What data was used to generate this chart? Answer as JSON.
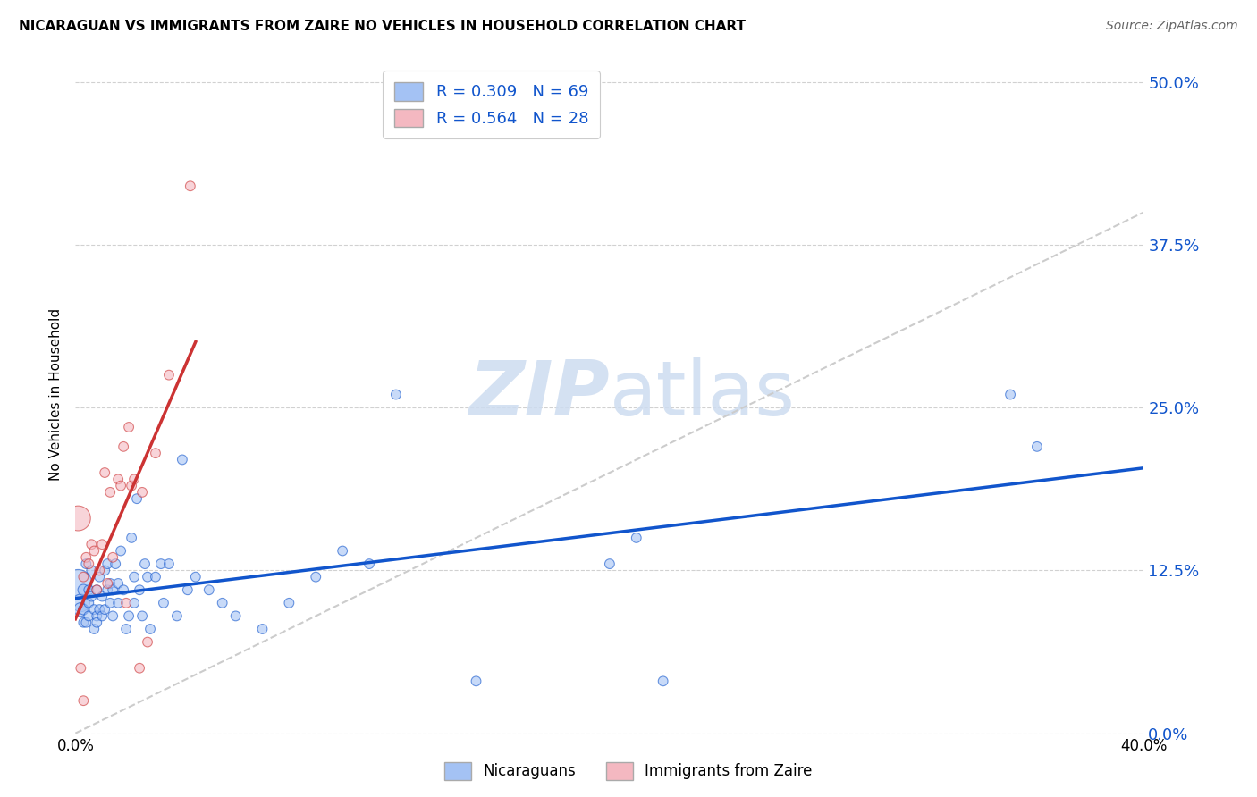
{
  "title": "NICARAGUAN VS IMMIGRANTS FROM ZAIRE NO VEHICLES IN HOUSEHOLD CORRELATION CHART",
  "source": "Source: ZipAtlas.com",
  "ylabel": "No Vehicles in Household",
  "xlim": [
    0.0,
    0.4
  ],
  "ylim": [
    0.0,
    0.52
  ],
  "yticks": [
    0.0,
    0.125,
    0.25,
    0.375,
    0.5
  ],
  "ytick_labels": [
    "0.0%",
    "12.5%",
    "25.0%",
    "37.5%",
    "50.0%"
  ],
  "xticks": [
    0.0,
    0.1,
    0.2,
    0.3,
    0.4
  ],
  "xtick_labels": [
    "0.0%",
    "",
    "",
    "",
    "40.0%"
  ],
  "color_blue": "#a4c2f4",
  "color_pink": "#f4b8c1",
  "line_blue": "#1155cc",
  "line_pink": "#cc3333",
  "line_diagonal": "#cccccc",
  "watermark_zip": "ZIP",
  "watermark_atlas": "atlas",
  "watermark_color": "#cddcf0",
  "nicaraguan_x": [
    0.001,
    0.002,
    0.002,
    0.003,
    0.003,
    0.003,
    0.004,
    0.004,
    0.005,
    0.005,
    0.005,
    0.006,
    0.006,
    0.007,
    0.007,
    0.008,
    0.008,
    0.008,
    0.009,
    0.009,
    0.01,
    0.01,
    0.011,
    0.011,
    0.012,
    0.012,
    0.013,
    0.013,
    0.014,
    0.014,
    0.015,
    0.016,
    0.016,
    0.017,
    0.018,
    0.019,
    0.02,
    0.021,
    0.022,
    0.022,
    0.023,
    0.024,
    0.025,
    0.026,
    0.027,
    0.028,
    0.03,
    0.032,
    0.033,
    0.035,
    0.038,
    0.04,
    0.042,
    0.045,
    0.05,
    0.055,
    0.06,
    0.07,
    0.08,
    0.09,
    0.1,
    0.11,
    0.12,
    0.15,
    0.2,
    0.21,
    0.22,
    0.35,
    0.36
  ],
  "nicaraguan_y": [
    0.115,
    0.1,
    0.095,
    0.11,
    0.095,
    0.085,
    0.13,
    0.085,
    0.1,
    0.09,
    0.11,
    0.125,
    0.105,
    0.08,
    0.095,
    0.11,
    0.09,
    0.085,
    0.12,
    0.095,
    0.105,
    0.09,
    0.125,
    0.095,
    0.13,
    0.11,
    0.1,
    0.115,
    0.11,
    0.09,
    0.13,
    0.1,
    0.115,
    0.14,
    0.11,
    0.08,
    0.09,
    0.15,
    0.12,
    0.1,
    0.18,
    0.11,
    0.09,
    0.13,
    0.12,
    0.08,
    0.12,
    0.13,
    0.1,
    0.13,
    0.09,
    0.21,
    0.11,
    0.12,
    0.11,
    0.1,
    0.09,
    0.08,
    0.1,
    0.12,
    0.14,
    0.13,
    0.26,
    0.04,
    0.13,
    0.15,
    0.04,
    0.26,
    0.22
  ],
  "nicaraguan_size": [
    500,
    200,
    120,
    80,
    70,
    60,
    60,
    60,
    60,
    60,
    60,
    60,
    60,
    60,
    60,
    60,
    60,
    60,
    60,
    60,
    60,
    60,
    60,
    60,
    60,
    60,
    60,
    60,
    60,
    60,
    60,
    60,
    60,
    60,
    60,
    60,
    60,
    60,
    60,
    60,
    60,
    60,
    60,
    60,
    60,
    60,
    60,
    60,
    60,
    60,
    60,
    60,
    60,
    60,
    60,
    60,
    60,
    60,
    60,
    60,
    60,
    60,
    60,
    60,
    60,
    60,
    60,
    60,
    60
  ],
  "zaire_x": [
    0.001,
    0.002,
    0.003,
    0.003,
    0.004,
    0.005,
    0.006,
    0.007,
    0.008,
    0.009,
    0.01,
    0.011,
    0.012,
    0.013,
    0.014,
    0.016,
    0.017,
    0.018,
    0.019,
    0.02,
    0.021,
    0.022,
    0.024,
    0.025,
    0.027,
    0.03,
    0.035,
    0.043
  ],
  "zaire_y": [
    0.165,
    0.05,
    0.025,
    0.12,
    0.135,
    0.13,
    0.145,
    0.14,
    0.11,
    0.125,
    0.145,
    0.2,
    0.115,
    0.185,
    0.135,
    0.195,
    0.19,
    0.22,
    0.1,
    0.235,
    0.19,
    0.195,
    0.05,
    0.185,
    0.07,
    0.215,
    0.275,
    0.42
  ],
  "zaire_size": [
    400,
    60,
    60,
    60,
    60,
    60,
    60,
    60,
    60,
    60,
    60,
    60,
    60,
    60,
    60,
    60,
    60,
    60,
    60,
    60,
    60,
    60,
    60,
    60,
    60,
    60,
    60,
    60
  ]
}
